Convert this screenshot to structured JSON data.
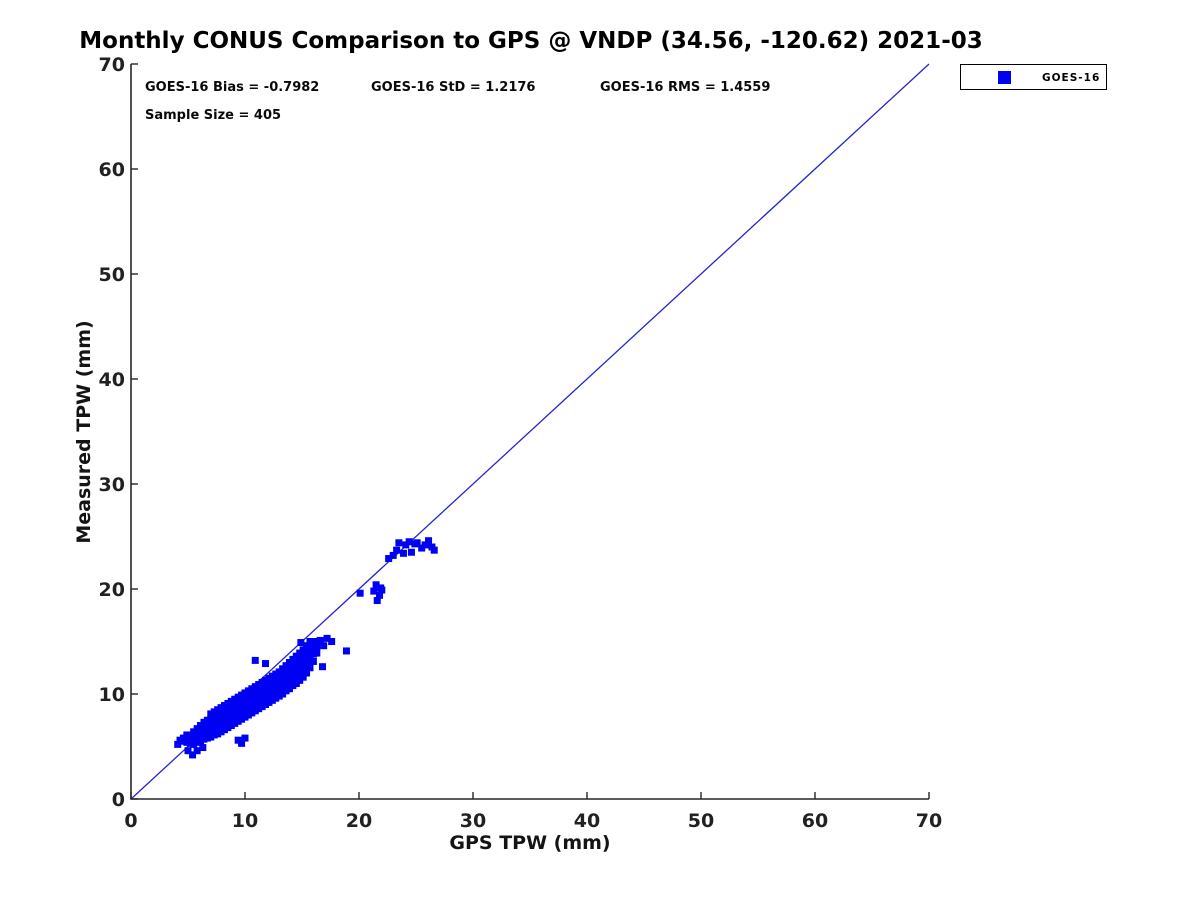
{
  "title": "Monthly CONUS Comparison to GPS @ VNDP (34.56, -120.62) 2021-03",
  "stats": {
    "bias": "GOES-16 Bias = -0.7982",
    "std": "GOES-16 StD = 1.2176",
    "rms": "GOES-16 RMS = 1.4559",
    "sample": "Sample Size = 405"
  },
  "legend": {
    "label": "GOES-16",
    "marker_color": "#0000f2",
    "position": "outside-top-right"
  },
  "colors": {
    "marker": "#0000f2",
    "reference_line": "#2424cc",
    "axis": "#262626",
    "background": "#ffffff"
  },
  "chart_data": {
    "type": "scatter",
    "title": "Monthly CONUS Comparison to GPS @ VNDP (34.56, -120.62) 2021-03",
    "xlabel": "GPS TPW (mm)",
    "ylabel": "Measured TPW (mm)",
    "xlim": [
      0,
      70
    ],
    "ylim": [
      0,
      70
    ],
    "xticks": [
      0,
      10,
      20,
      30,
      40,
      50,
      60,
      70
    ],
    "yticks": [
      0,
      10,
      20,
      30,
      40,
      50,
      60,
      70
    ],
    "grid": false,
    "bias": -0.7982,
    "std": 1.2176,
    "rms": 1.4559,
    "sample_size": 405,
    "reference_line": {
      "from": [
        0,
        0
      ],
      "to": [
        70,
        70
      ]
    },
    "series": [
      {
        "name": "GOES-16",
        "marker": "square",
        "color": "#0000f2",
        "points": [
          [
            4.1,
            5.2
          ],
          [
            4.3,
            5.6
          ],
          [
            4.6,
            5.5
          ],
          [
            4.6,
            5.8
          ],
          [
            4.9,
            5.4
          ],
          [
            4.9,
            5.9
          ],
          [
            4.9,
            6.1
          ],
          [
            5.0,
            4.6
          ],
          [
            5.2,
            5.3
          ],
          [
            5.2,
            5.7
          ],
          [
            5.2,
            6.0
          ],
          [
            5.4,
            4.2
          ],
          [
            5.5,
            5.2
          ],
          [
            5.5,
            5.6
          ],
          [
            5.5,
            6.1
          ],
          [
            5.5,
            6.4
          ],
          [
            5.8,
            4.6
          ],
          [
            5.8,
            5.4
          ],
          [
            5.8,
            5.8
          ],
          [
            5.8,
            6.3
          ],
          [
            5.8,
            6.7
          ],
          [
            6.1,
            5.5
          ],
          [
            6.1,
            6.0
          ],
          [
            6.1,
            6.5
          ],
          [
            6.1,
            7.0
          ],
          [
            6.3,
            4.9
          ],
          [
            6.4,
            5.7
          ],
          [
            6.4,
            6.2
          ],
          [
            6.4,
            6.7
          ],
          [
            6.4,
            7.3
          ],
          [
            6.7,
            5.8
          ],
          [
            6.7,
            6.3
          ],
          [
            6.7,
            6.9
          ],
          [
            6.7,
            7.5
          ],
          [
            7.0,
            5.9
          ],
          [
            7.0,
            6.4
          ],
          [
            7.0,
            7.0
          ],
          [
            7.0,
            7.6
          ],
          [
            7.0,
            8.1
          ],
          [
            7.3,
            6.1
          ],
          [
            7.3,
            6.6
          ],
          [
            7.3,
            7.2
          ],
          [
            7.3,
            7.8
          ],
          [
            7.3,
            8.3
          ],
          [
            7.6,
            6.2
          ],
          [
            7.6,
            6.8
          ],
          [
            7.6,
            7.4
          ],
          [
            7.6,
            8.0
          ],
          [
            7.6,
            8.5
          ],
          [
            7.9,
            6.4
          ],
          [
            7.9,
            7.0
          ],
          [
            7.9,
            7.6
          ],
          [
            7.9,
            8.2
          ],
          [
            7.9,
            8.7
          ],
          [
            8.2,
            6.6
          ],
          [
            8.2,
            7.2
          ],
          [
            8.2,
            7.8
          ],
          [
            8.2,
            8.4
          ],
          [
            8.2,
            8.9
          ],
          [
            8.5,
            6.8
          ],
          [
            8.5,
            7.4
          ],
          [
            8.5,
            8.0
          ],
          [
            8.5,
            8.6
          ],
          [
            8.5,
            9.1
          ],
          [
            8.8,
            7.0
          ],
          [
            8.8,
            7.6
          ],
          [
            8.8,
            8.2
          ],
          [
            8.8,
            8.8
          ],
          [
            8.8,
            9.3
          ],
          [
            9.1,
            7.2
          ],
          [
            9.1,
            7.8
          ],
          [
            9.1,
            8.4
          ],
          [
            9.1,
            9.0
          ],
          [
            9.1,
            9.5
          ],
          [
            9.4,
            5.6
          ],
          [
            9.4,
            7.4
          ],
          [
            9.4,
            8.0
          ],
          [
            9.4,
            8.6
          ],
          [
            9.4,
            9.2
          ],
          [
            9.4,
            9.7
          ],
          [
            9.7,
            5.3
          ],
          [
            9.7,
            7.6
          ],
          [
            9.7,
            8.2
          ],
          [
            9.7,
            8.8
          ],
          [
            9.7,
            9.4
          ],
          [
            9.7,
            9.9
          ],
          [
            10.0,
            5.8
          ],
          [
            10.0,
            7.8
          ],
          [
            10.0,
            8.4
          ],
          [
            10.0,
            9.0
          ],
          [
            10.0,
            9.6
          ],
          [
            10.0,
            10.1
          ],
          [
            10.3,
            8.0
          ],
          [
            10.3,
            8.6
          ],
          [
            10.3,
            9.2
          ],
          [
            10.3,
            9.8
          ],
          [
            10.3,
            10.3
          ],
          [
            10.6,
            8.2
          ],
          [
            10.6,
            8.8
          ],
          [
            10.6,
            9.4
          ],
          [
            10.6,
            10.0
          ],
          [
            10.6,
            10.5
          ],
          [
            10.9,
            8.4
          ],
          [
            10.9,
            9.0
          ],
          [
            10.9,
            9.6
          ],
          [
            10.9,
            10.2
          ],
          [
            10.9,
            10.7
          ],
          [
            10.9,
            13.2
          ],
          [
            11.2,
            8.6
          ],
          [
            11.2,
            9.2
          ],
          [
            11.2,
            9.8
          ],
          [
            11.2,
            10.4
          ],
          [
            11.2,
            10.9
          ],
          [
            11.5,
            8.8
          ],
          [
            11.5,
            9.4
          ],
          [
            11.5,
            10.0
          ],
          [
            11.5,
            10.6
          ],
          [
            11.5,
            11.1
          ],
          [
            11.8,
            9.0
          ],
          [
            11.8,
            9.6
          ],
          [
            11.8,
            10.2
          ],
          [
            11.8,
            10.8
          ],
          [
            11.8,
            11.3
          ],
          [
            11.8,
            12.9
          ],
          [
            12.1,
            9.2
          ],
          [
            12.1,
            9.8
          ],
          [
            12.1,
            10.4
          ],
          [
            12.1,
            11.0
          ],
          [
            12.1,
            11.5
          ],
          [
            12.4,
            9.4
          ],
          [
            12.4,
            10.0
          ],
          [
            12.4,
            10.6
          ],
          [
            12.4,
            11.2
          ],
          [
            12.4,
            11.7
          ],
          [
            12.7,
            9.6
          ],
          [
            12.7,
            10.2
          ],
          [
            12.7,
            10.8
          ],
          [
            12.7,
            11.4
          ],
          [
            12.7,
            11.9
          ],
          [
            13.0,
            9.8
          ],
          [
            13.0,
            10.4
          ],
          [
            13.0,
            11.0
          ],
          [
            13.0,
            11.6
          ],
          [
            13.0,
            12.1
          ],
          [
            13.3,
            10.0
          ],
          [
            13.3,
            10.6
          ],
          [
            13.3,
            11.2
          ],
          [
            13.3,
            11.8
          ],
          [
            13.3,
            12.4
          ],
          [
            13.6,
            10.3
          ],
          [
            13.6,
            10.9
          ],
          [
            13.6,
            11.5
          ],
          [
            13.6,
            12.1
          ],
          [
            13.6,
            12.7
          ],
          [
            13.9,
            10.5
          ],
          [
            13.9,
            11.1
          ],
          [
            13.9,
            11.7
          ],
          [
            13.9,
            12.3
          ],
          [
            13.9,
            13.0
          ],
          [
            14.2,
            10.8
          ],
          [
            14.2,
            11.4
          ],
          [
            14.2,
            12.0
          ],
          [
            14.2,
            12.6
          ],
          [
            14.2,
            13.3
          ],
          [
            14.5,
            11.0
          ],
          [
            14.5,
            11.6
          ],
          [
            14.5,
            12.3
          ],
          [
            14.5,
            12.9
          ],
          [
            14.5,
            13.6
          ],
          [
            14.8,
            11.3
          ],
          [
            14.8,
            11.9
          ],
          [
            14.8,
            12.6
          ],
          [
            14.8,
            13.2
          ],
          [
            14.8,
            13.9
          ],
          [
            14.9,
            14.9
          ],
          [
            15.1,
            11.6
          ],
          [
            15.1,
            12.2
          ],
          [
            15.1,
            12.9
          ],
          [
            15.1,
            13.6
          ],
          [
            15.1,
            14.2
          ],
          [
            15.4,
            12.0
          ],
          [
            15.4,
            12.7
          ],
          [
            15.4,
            13.4
          ],
          [
            15.4,
            14.0
          ],
          [
            15.4,
            14.6
          ],
          [
            15.7,
            12.5
          ],
          [
            15.7,
            13.2
          ],
          [
            15.7,
            13.9
          ],
          [
            15.7,
            14.5
          ],
          [
            15.7,
            15.0
          ],
          [
            16.0,
            13.1
          ],
          [
            16.0,
            13.8
          ],
          [
            16.0,
            14.4
          ],
          [
            16.0,
            14.9
          ],
          [
            16.3,
            13.9
          ],
          [
            16.3,
            14.5
          ],
          [
            16.3,
            15.0
          ],
          [
            16.6,
            15.1
          ],
          [
            16.8,
            12.6
          ],
          [
            16.9,
            14.6
          ],
          [
            17.2,
            15.3
          ],
          [
            17.6,
            15.0
          ],
          [
            18.9,
            14.1
          ],
          [
            20.1,
            19.6
          ],
          [
            21.3,
            19.8
          ],
          [
            21.5,
            20.4
          ],
          [
            21.6,
            18.9
          ],
          [
            21.8,
            19.4
          ],
          [
            21.9,
            20.1
          ],
          [
            22.0,
            19.9
          ],
          [
            22.6,
            22.9
          ],
          [
            23.0,
            23.2
          ],
          [
            23.3,
            23.7
          ],
          [
            23.5,
            24.4
          ],
          [
            23.9,
            23.4
          ],
          [
            24.1,
            24.2
          ],
          [
            24.4,
            24.5
          ],
          [
            24.6,
            23.5
          ],
          [
            24.9,
            24.3
          ],
          [
            25.1,
            24.4
          ],
          [
            25.5,
            23.9
          ],
          [
            25.8,
            24.2
          ],
          [
            26.1,
            24.6
          ],
          [
            26.4,
            24.0
          ],
          [
            26.6,
            23.7
          ]
        ]
      }
    ]
  }
}
